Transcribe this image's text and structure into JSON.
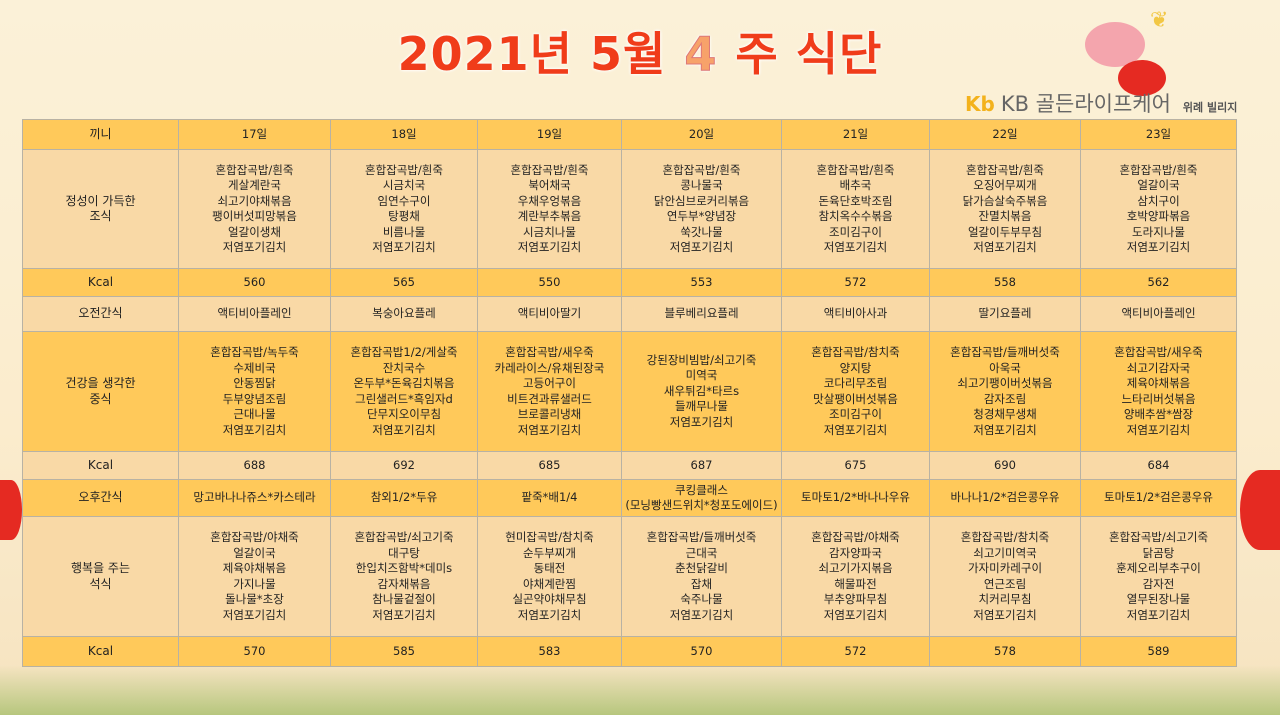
{
  "header": {
    "title_prefix": "2021년 5월",
    "week_number": "4",
    "title_suffix": "주 식단"
  },
  "logo": {
    "mark": "Kb",
    "brand": "KB 골든라이프케어",
    "branch": "위례 빌리지"
  },
  "table": {
    "corner": "끼니",
    "dates": [
      "17일",
      "18일",
      "19일",
      "20일",
      "21일",
      "22일",
      "23일"
    ],
    "rows": [
      {
        "label": "정성이 가득한\n조식",
        "style": "l",
        "cells": [
          "혼합잡곡밥/흰죽\n게살계란국\n쇠고기야채볶음\n팽이버섯피망볶음\n얼갈이생채\n저염포기김치",
          "혼합잡곡밥/흰죽\n시금치국\n임연수구이\n탕평채\n비름나물\n저염포기김치",
          "혼합잡곡밥/흰죽\n북어채국\n우채우엉볶음\n계란부추볶음\n시금치나물\n저염포기김치",
          "혼합잡곡밥/흰죽\n콩나물국\n닭안심브로커리볶음\n연두부*양념장\n쑥갓나물\n저염포기김치",
          "혼합잡곡밥/흰죽\n배추국\n돈육단호박조림\n참치옥수수볶음\n조미김구이\n저염포기김치",
          "혼합잡곡밥/흰죽\n오징어무찌개\n닭가슴살숙주볶음\n잔멸치볶음\n얼갈이두부무침\n저염포기김치",
          "혼합잡곡밥/흰죽\n얼갈이국\n삼치구이\n호박양파볶음\n도라지나물\n저염포기김치"
        ]
      },
      {
        "label": "Kcal",
        "style": "g",
        "cells": [
          "560",
          "565",
          "550",
          "553",
          "572",
          "558",
          "562"
        ]
      },
      {
        "label": "오전간식",
        "style": "l",
        "cells": [
          "액티비아플레인",
          "복숭아요플레",
          "액티비아딸기",
          "블루베리요플레",
          "액티비아사과",
          "딸기요플레",
          "액티비아플레인"
        ]
      },
      {
        "label": "건강을 생각한\n중식",
        "style": "g",
        "cells": [
          "혼합잡곡밥/녹두죽\n수제비국\n안동찜닭\n두부양념조림\n근대나물\n저염포기김치",
          "혼합잡곡밥1/2/게살죽\n잔치국수\n온두부*돈육김치볶음\n그린샐러드*흑임자d\n단무지오이무침\n저염포기김치",
          "혼합잡곡밥/새우죽\n카레라이스/유채된장국\n고등어구이\n비트견과류샐러드\n브로콜리냉채\n저염포기김치",
          "강된장비빔밥/쇠고기죽\n미역국\n새우튀김*타르s\n들깨무나물\n저염포기김치",
          "혼합잡곡밥/참치죽\n양지탕\n코다리무조림\n맛살팽이버섯볶음\n조미김구이\n저염포기김치",
          "혼합잡곡밥/들깨버섯죽\n아욱국\n쇠고기팽이버섯볶음\n감자조림\n청경채무생채\n저염포기김치",
          "혼합잡곡밥/새우죽\n쇠고기감자국\n제육야채볶음\n느타리버섯볶음\n양배추쌈*쌈장\n저염포기김치"
        ]
      },
      {
        "label": "Kcal",
        "style": "l",
        "cells": [
          "688",
          "692",
          "685",
          "687",
          "675",
          "690",
          "684"
        ]
      },
      {
        "label": "오후간식",
        "style": "g",
        "cells": [
          "망고바나나쥬스*카스테라",
          "참외1/2*두유",
          "팥죽*배1/4",
          "쿠킹클래스\n(모닝빵샌드위치*청포도에이드)",
          "토마토1/2*바나나우유",
          "바나나1/2*검은콩우유",
          "토마토1/2*검은콩우유"
        ]
      },
      {
        "label": "행복을 주는\n석식",
        "style": "l",
        "cells": [
          "혼합잡곡밥/야채죽\n얼갈이국\n제육야채볶음\n가지나물\n돌나물*초장\n저염포기김치",
          "혼합잡곡밥/쇠고기죽\n대구탕\n한입치즈함박*데미s\n감자채볶음\n참나물겉절이\n저염포기김치",
          "현미잡곡밥/참치죽\n순두부찌개\n동태전\n야채계란찜\n실곤약야채무침\n저염포기김치",
          "혼합잡곡밥/들깨버섯죽\n근대국\n춘천닭갈비\n잡채\n숙주나물\n저염포기김치",
          "혼합잡곡밥/야채죽\n감자양파국\n쇠고기가지볶음\n해물파전\n부추양파무침\n저염포기김치",
          "혼합잡곡밥/참치죽\n쇠고기미역국\n가자미카레구이\n연근조림\n치커리무침\n저염포기김치",
          "혼합잡곡밥/쇠고기죽\n닭곰탕\n훈제오리부추구이\n감자전\n열무된장나물\n저염포기김치"
        ]
      },
      {
        "label": "Kcal",
        "style": "g",
        "cells": [
          "570",
          "585",
          "583",
          "570",
          "572",
          "578",
          "589"
        ]
      }
    ]
  }
}
